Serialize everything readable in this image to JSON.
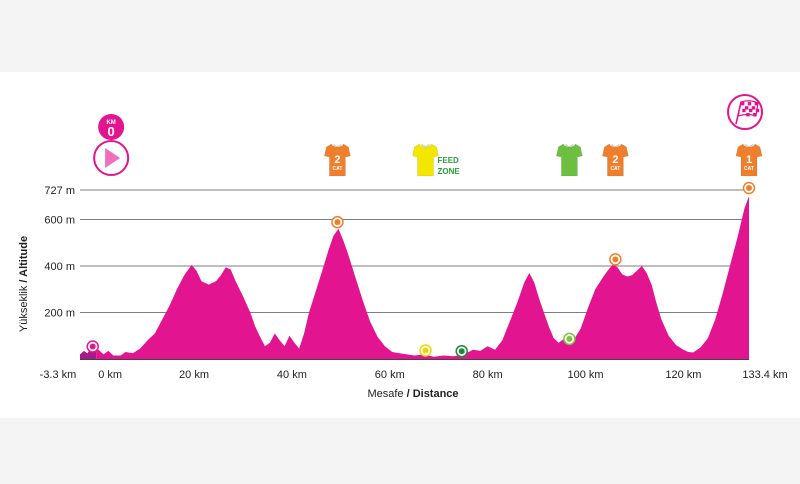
{
  "chart_data": {
    "type": "area",
    "xlabel_prefix": "Mesafe",
    "xlabel_main": "Distance",
    "ylabel_prefix": "Yükseklik",
    "ylabel_main": "Altitude",
    "x_ticks": [
      {
        "value": -3.3,
        "label": "-3.3 km"
      },
      {
        "value": 0,
        "label": "0 km"
      },
      {
        "value": 20,
        "label": "20 km"
      },
      {
        "value": 40,
        "label": "40 km"
      },
      {
        "value": 60,
        "label": "60 km"
      },
      {
        "value": 80,
        "label": "80 km"
      },
      {
        "value": 100,
        "label": "100 km"
      },
      {
        "value": 120,
        "label": "120 km"
      },
      {
        "value": 133.4,
        "label": "133.4 km"
      }
    ],
    "y_ticks": [
      {
        "value": 200,
        "label": "200 m"
      },
      {
        "value": 400,
        "label": "400 m"
      },
      {
        "value": 600,
        "label": "600 m"
      },
      {
        "value": 727,
        "label": "727 m"
      }
    ],
    "xlim": [
      -3.3,
      133.4
    ],
    "ylim": [
      0,
      727
    ],
    "neutral_end_km": 0,
    "neutral_color": "#a61c86",
    "profile_color": "#e3148f",
    "profile": [
      [
        -3.3,
        20
      ],
      [
        -2.5,
        35
      ],
      [
        -1.8,
        25
      ],
      [
        -1.0,
        45
      ],
      [
        -0.3,
        30
      ],
      [
        0.5,
        40
      ],
      [
        1.5,
        20
      ],
      [
        2.5,
        35
      ],
      [
        3.5,
        15
      ],
      [
        5,
        15
      ],
      [
        6,
        30
      ],
      [
        7.5,
        25
      ],
      [
        9,
        45
      ],
      [
        10.5,
        80
      ],
      [
        12,
        110
      ],
      [
        13.5,
        170
      ],
      [
        15,
        230
      ],
      [
        16.5,
        300
      ],
      [
        18,
        360
      ],
      [
        19.5,
        405
      ],
      [
        20.5,
        380
      ],
      [
        21.5,
        335
      ],
      [
        23,
        320
      ],
      [
        24.5,
        335
      ],
      [
        25.5,
        360
      ],
      [
        26.5,
        395
      ],
      [
        27.5,
        385
      ],
      [
        28.5,
        335
      ],
      [
        30,
        270
      ],
      [
        31.5,
        200
      ],
      [
        32.5,
        140
      ],
      [
        33.5,
        95
      ],
      [
        34.5,
        55
      ],
      [
        35.5,
        70
      ],
      [
        36.5,
        110
      ],
      [
        37.5,
        80
      ],
      [
        38.5,
        55
      ],
      [
        39.5,
        100
      ],
      [
        40.5,
        70
      ],
      [
        41.5,
        45
      ],
      [
        42.5,
        110
      ],
      [
        43.5,
        200
      ],
      [
        45,
        300
      ],
      [
        46.5,
        400
      ],
      [
        47.5,
        470
      ],
      [
        48.5,
        530
      ],
      [
        49.5,
        560
      ],
      [
        50.5,
        510
      ],
      [
        51.5,
        450
      ],
      [
        53,
        350
      ],
      [
        54.5,
        250
      ],
      [
        56,
        160
      ],
      [
        57.5,
        95
      ],
      [
        59,
        55
      ],
      [
        60.5,
        30
      ],
      [
        62,
        25
      ],
      [
        63.5,
        20
      ],
      [
        65,
        15
      ],
      [
        67,
        20
      ],
      [
        69,
        10
      ],
      [
        71,
        15
      ],
      [
        73,
        12
      ],
      [
        75,
        18
      ],
      [
        77,
        40
      ],
      [
        78.5,
        35
      ],
      [
        80,
        55
      ],
      [
        81.5,
        40
      ],
      [
        83,
        80
      ],
      [
        84.5,
        160
      ],
      [
        86,
        240
      ],
      [
        87.5,
        330
      ],
      [
        88.5,
        370
      ],
      [
        89.5,
        330
      ],
      [
        90.5,
        260
      ],
      [
        91.5,
        200
      ],
      [
        92.5,
        140
      ],
      [
        93.5,
        90
      ],
      [
        94.5,
        70
      ],
      [
        95.5,
        85
      ],
      [
        96.5,
        60
      ],
      [
        97.5,
        80
      ],
      [
        99,
        130
      ],
      [
        100.5,
        220
      ],
      [
        102,
        300
      ],
      [
        103.5,
        350
      ],
      [
        104.5,
        380
      ],
      [
        105.5,
        405
      ],
      [
        106.5,
        395
      ],
      [
        107.5,
        365
      ],
      [
        108.5,
        355
      ],
      [
        109.5,
        360
      ],
      [
        110.5,
        380
      ],
      [
        111.5,
        400
      ],
      [
        112.5,
        370
      ],
      [
        113.5,
        320
      ],
      [
        114.5,
        240
      ],
      [
        115.5,
        170
      ],
      [
        117,
        100
      ],
      [
        118.5,
        60
      ],
      [
        120,
        40
      ],
      [
        121,
        30
      ],
      [
        122,
        28
      ],
      [
        123.5,
        50
      ],
      [
        125,
        90
      ],
      [
        126.5,
        170
      ],
      [
        128,
        280
      ],
      [
        129.5,
        400
      ],
      [
        131,
        520
      ],
      [
        132.5,
        650
      ],
      [
        133.4,
        700
      ]
    ],
    "markers": [
      {
        "km": -0.7,
        "alt": 45,
        "color": "#e3148f"
      },
      {
        "km": 49.3,
        "alt": 580,
        "color": "#f07f2d"
      },
      {
        "km": 67.3,
        "alt": 28,
        "color": "#f3d400"
      },
      {
        "km": 74.7,
        "alt": 25,
        "color": "#1f8a3a"
      },
      {
        "km": 96.7,
        "alt": 78,
        "color": "#7cc242"
      },
      {
        "km": 106.1,
        "alt": 420,
        "color": "#f07f2d"
      },
      {
        "km": 133.4,
        "alt": 727,
        "color": "#f07f2d"
      }
    ],
    "icons": [
      {
        "type": "km0",
        "km": 0,
        "km_label": "KM",
        "km_value": "0"
      },
      {
        "type": "jersey",
        "km": 49.3,
        "color": "#f07f2d",
        "num": "2",
        "sub": "CAT"
      },
      {
        "type": "jersey",
        "km": 67.3,
        "color": "#f3e600",
        "num": "",
        "sub": ""
      },
      {
        "type": "feed",
        "km": 67.3,
        "line1": "FEED",
        "line2": "ZONE"
      },
      {
        "type": "jersey",
        "km": 96.7,
        "color": "#6cbf3f",
        "num": "",
        "sub": ""
      },
      {
        "type": "jersey",
        "km": 106.1,
        "color": "#f07f2d",
        "num": "2",
        "sub": "CAT"
      },
      {
        "type": "jersey",
        "km": 133.4,
        "color": "#f07f2d",
        "num": "1",
        "sub": "CAT"
      },
      {
        "type": "finish",
        "km": 133.4
      }
    ]
  }
}
